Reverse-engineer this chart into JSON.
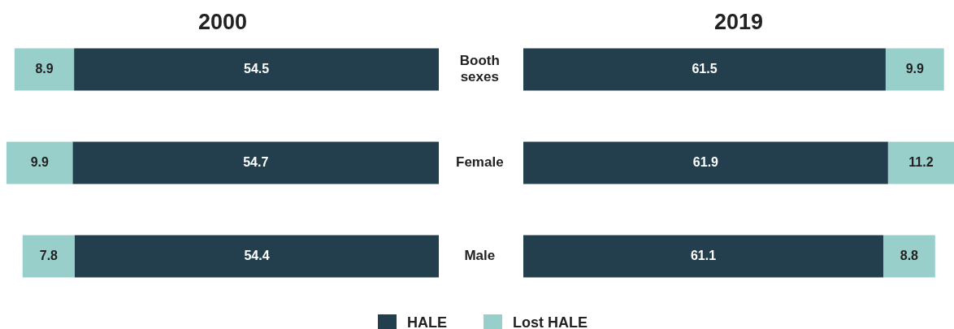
{
  "chart_data": [
    {
      "type": "bar",
      "orientation": "horizontal",
      "stacked": true,
      "title": "2000",
      "categories": [
        "Booth sexes",
        "Female",
        "Male"
      ],
      "series": [
        {
          "name": "HALE",
          "color": "#233e4c",
          "values": [
            54.5,
            54.7,
            54.4
          ]
        },
        {
          "name": "Lost HALE",
          "color": "#99cfca",
          "values": [
            8.9,
            9.9,
            7.8
          ]
        }
      ],
      "data_labels": true,
      "legend": "bottom",
      "tick_labels": "y"
    },
    {
      "type": "bar",
      "orientation": "horizontal",
      "stacked": true,
      "title": "2019",
      "categories": [
        "Booth sexes",
        "Female",
        "Male"
      ],
      "series": [
        {
          "name": "HALE",
          "color": "#233e4c",
          "values": [
            61.5,
            61.9,
            61.1
          ]
        },
        {
          "name": "Lost HALE",
          "color": "#99cfca",
          "values": [
            9.9,
            11.2,
            8.8
          ]
        }
      ],
      "data_labels": true,
      "tick_labels": false
    }
  ]
}
